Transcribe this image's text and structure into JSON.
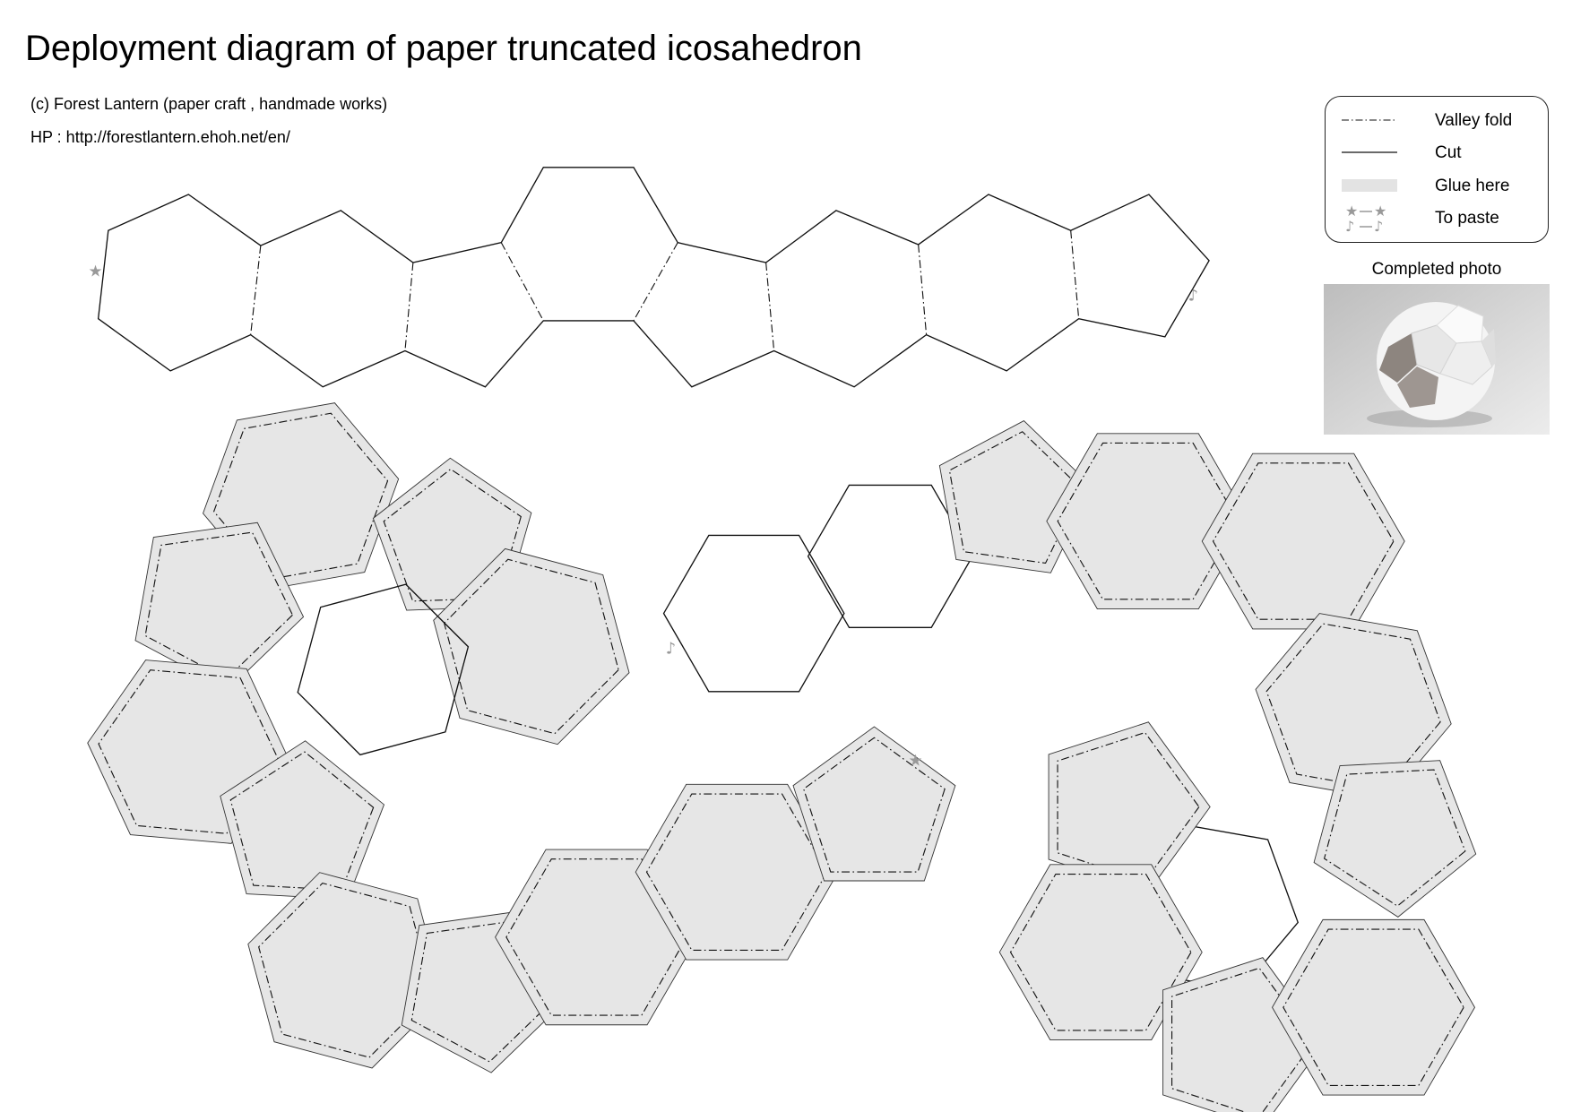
{
  "title": "Deployment diagram of paper truncated icosahedron",
  "copyright": "(c) Forest Lantern (paper craft , handmade works)",
  "homepage": "HP : http://forestlantern.ehoh.net/en/",
  "legend": {
    "valley_fold": "Valley fold",
    "cut": "Cut",
    "glue": "Glue here",
    "paste": "To paste",
    "paste_symbols": [
      "★",
      "♪"
    ]
  },
  "completed_photo_label": "Completed photo",
  "marks": {
    "star": "★",
    "note": "♪"
  },
  "colors": {
    "glue_fill": "#e6e6e6",
    "line": "#111111",
    "mark": "#999999"
  }
}
